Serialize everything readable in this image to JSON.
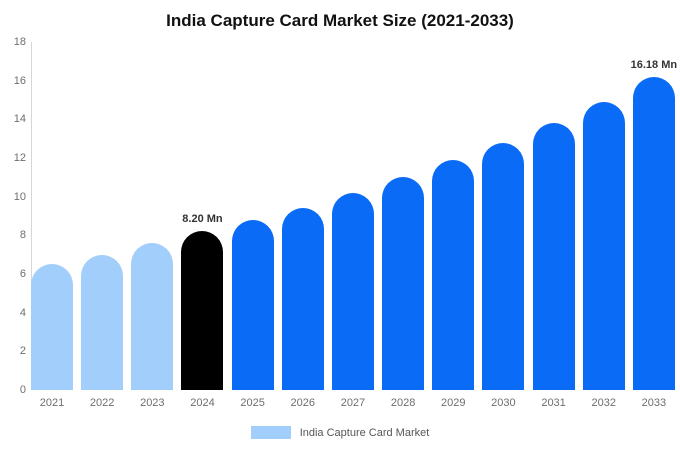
{
  "colors": {
    "light_blue": "#a1cefa",
    "blue": "#0a6cf6",
    "black": "#000000",
    "axis_line": "#d6d6d6",
    "tick_text": "#6e6e6e",
    "annotation_text": "#333333",
    "background": "#ffffff"
  },
  "legend": {
    "label": "India Capture Card Market",
    "swatch_color": "#a1cefa"
  },
  "chart_data": {
    "type": "bar",
    "title": "India Capture Card Market Size (2021-2033)",
    "categories": [
      "2021",
      "2022",
      "2023",
      "2024",
      "2025",
      "2026",
      "2027",
      "2028",
      "2029",
      "2030",
      "2031",
      "2032",
      "2033"
    ],
    "values": [
      6.5,
      7.0,
      7.6,
      8.2,
      8.8,
      9.4,
      10.2,
      11.0,
      11.9,
      12.8,
      13.8,
      14.9,
      16.18
    ],
    "bar_colors": [
      "#a1cefa",
      "#a1cefa",
      "#a1cefa",
      "#000000",
      "#0a6cf6",
      "#0a6cf6",
      "#0a6cf6",
      "#0a6cf6",
      "#0a6cf6",
      "#0a6cf6",
      "#0a6cf6",
      "#0a6cf6",
      "#0a6cf6"
    ],
    "annotations": [
      {
        "index": 3,
        "text": "8.20 Mn"
      },
      {
        "index": 12,
        "text": "16.18 Mn"
      }
    ],
    "xlabel": "",
    "ylabel": "",
    "ylim": [
      0,
      18
    ],
    "yticks": [
      0,
      2,
      4,
      6,
      8,
      10,
      12,
      14,
      16,
      18
    ],
    "grid": false,
    "legend_position": "bottom"
  }
}
